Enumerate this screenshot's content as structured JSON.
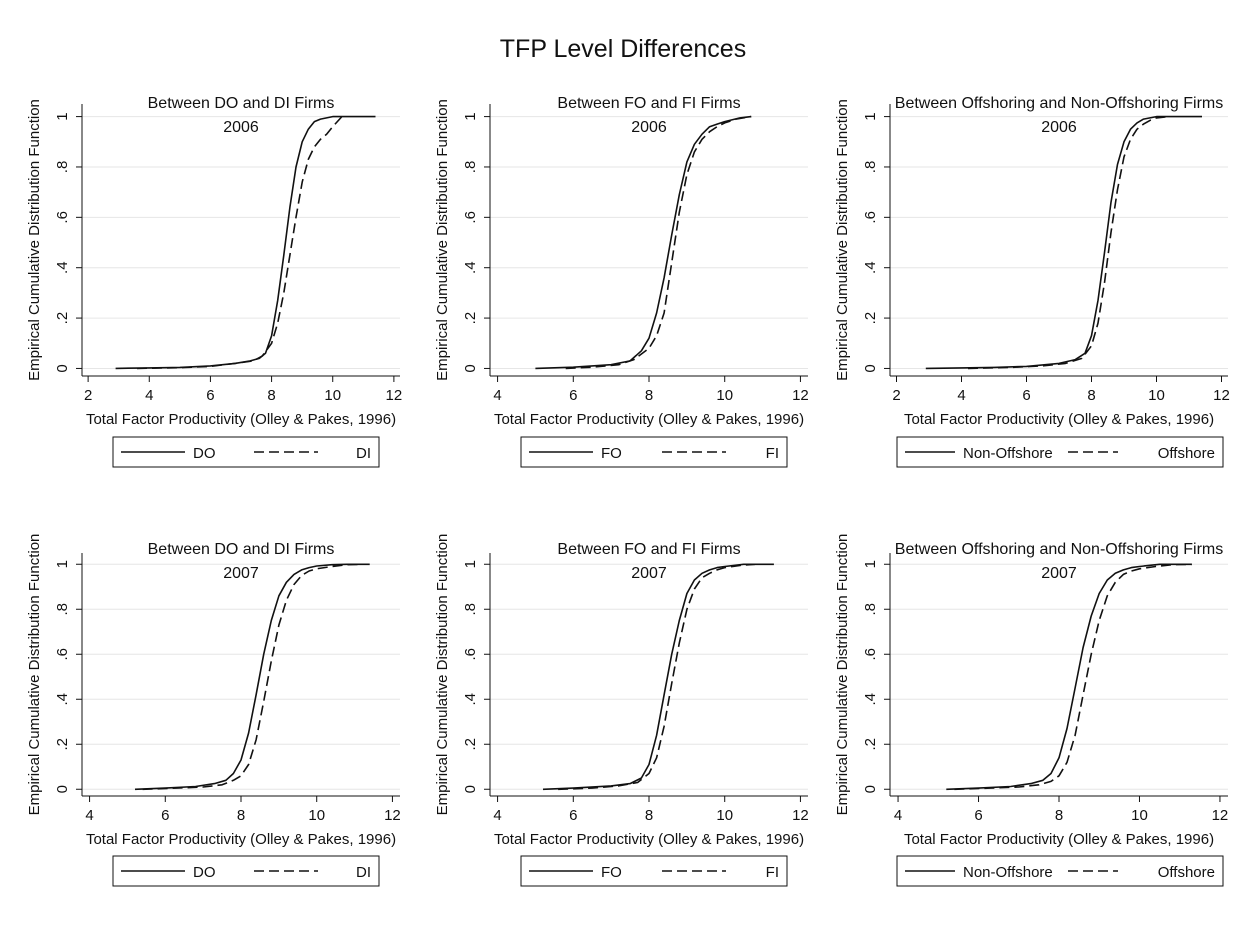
{
  "figure": {
    "title": "TFP Level Differences"
  },
  "chart_data": [
    {
      "type": "line",
      "title": "Between DO and DI Firms",
      "subtitle": "2006",
      "xlabel": "Total Factor Productivity (Olley & Pakes, 1996)",
      "ylabel": "Empirical Cumulative Distribution Function",
      "xlim": [
        1.8,
        12.2
      ],
      "ylim": [
        -0.03,
        1.05
      ],
      "xticks": [
        "2",
        "4",
        "6",
        "8",
        "10",
        "12"
      ],
      "yticks": [
        "0",
        ".2",
        ".4",
        ".6",
        ".8",
        "1"
      ],
      "grid": "horizontal",
      "legend": "bottom-outside",
      "series": [
        {
          "name": "DO",
          "style": "solid",
          "x": [
            2.9,
            4.0,
            5.0,
            6.0,
            6.8,
            7.3,
            7.6,
            7.8,
            8.0,
            8.2,
            8.4,
            8.6,
            8.8,
            9.0,
            9.2,
            9.4,
            9.6,
            9.8,
            10.0,
            10.5,
            11.4
          ],
          "y": [
            0,
            0.002,
            0.004,
            0.01,
            0.02,
            0.03,
            0.04,
            0.06,
            0.13,
            0.27,
            0.45,
            0.64,
            0.8,
            0.9,
            0.95,
            0.98,
            0.99,
            0.995,
            1,
            1,
            1
          ]
        },
        {
          "name": "DI",
          "style": "dashed",
          "x": [
            3.6,
            5.0,
            6.0,
            6.8,
            7.4,
            7.7,
            8.0,
            8.2,
            8.4,
            8.6,
            8.8,
            9.0,
            9.2,
            9.4,
            9.6,
            9.8,
            10.0,
            10.3
          ],
          "y": [
            0,
            0.003,
            0.008,
            0.02,
            0.03,
            0.05,
            0.1,
            0.18,
            0.3,
            0.45,
            0.6,
            0.74,
            0.83,
            0.88,
            0.91,
            0.93,
            0.96,
            1
          ]
        }
      ]
    },
    {
      "type": "line",
      "title": "Between FO and FI Firms",
      "subtitle": "2006",
      "xlabel": "Total Factor Productivity (Olley & Pakes, 1996)",
      "ylabel": "Empirical Cumulative Distribution Function",
      "xlim": [
        3.8,
        12.2
      ],
      "ylim": [
        -0.03,
        1.05
      ],
      "xticks": [
        "4",
        "6",
        "8",
        "10",
        "12"
      ],
      "yticks": [
        "0",
        ".2",
        ".4",
        ".6",
        ".8",
        "1"
      ],
      "grid": "horizontal",
      "legend": "bottom-outside",
      "series": [
        {
          "name": "FO",
          "style": "solid",
          "x": [
            5.0,
            6.0,
            7.0,
            7.5,
            7.8,
            8.0,
            8.2,
            8.4,
            8.6,
            8.8,
            9.0,
            9.2,
            9.4,
            9.6,
            9.8,
            10.0,
            10.4,
            10.7
          ],
          "y": [
            0,
            0.005,
            0.015,
            0.03,
            0.07,
            0.12,
            0.22,
            0.36,
            0.53,
            0.69,
            0.82,
            0.89,
            0.93,
            0.96,
            0.97,
            0.98,
            0.995,
            1
          ]
        },
        {
          "name": "FI",
          "style": "dashed",
          "x": [
            5.8,
            6.5,
            7.2,
            7.6,
            8.0,
            8.2,
            8.4,
            8.6,
            8.8,
            9.0,
            9.2,
            9.4,
            9.6,
            9.8,
            10.0,
            10.3,
            10.7
          ],
          "y": [
            0,
            0.005,
            0.015,
            0.035,
            0.08,
            0.13,
            0.22,
            0.42,
            0.62,
            0.77,
            0.86,
            0.91,
            0.94,
            0.96,
            0.975,
            0.99,
            1
          ]
        }
      ]
    },
    {
      "type": "line",
      "title": "Between Offshoring and Non-Offshoring Firms",
      "subtitle": "2006",
      "xlabel": "Total Factor Productivity (Olley & Pakes, 1996)",
      "ylabel": "Empirical Cumulative Distribution Function",
      "xlim": [
        1.8,
        12.2
      ],
      "ylim": [
        -0.03,
        1.05
      ],
      "xticks": [
        "2",
        "4",
        "6",
        "8",
        "10",
        "12"
      ],
      "yticks": [
        "0",
        ".2",
        ".4",
        ".6",
        ".8",
        "1"
      ],
      "grid": "horizontal",
      "legend": "bottom-outside",
      "series": [
        {
          "name": "Non-Offshore",
          "style": "solid",
          "x": [
            2.9,
            4.0,
            5.0,
            6.0,
            7.0,
            7.5,
            7.8,
            8.0,
            8.2,
            8.4,
            8.6,
            8.8,
            9.0,
            9.2,
            9.4,
            9.6,
            9.8,
            10.0,
            10.5,
            11.4
          ],
          "y": [
            0,
            0.002,
            0.004,
            0.008,
            0.02,
            0.035,
            0.06,
            0.13,
            0.27,
            0.46,
            0.66,
            0.81,
            0.9,
            0.95,
            0.975,
            0.99,
            0.995,
            1,
            1,
            1
          ]
        },
        {
          "name": "Offshore",
          "style": "dashed",
          "x": [
            4.2,
            5.5,
            6.5,
            7.2,
            7.7,
            8.0,
            8.2,
            8.4,
            8.6,
            8.8,
            9.0,
            9.2,
            9.4,
            9.6,
            9.8,
            10.0,
            10.4
          ],
          "y": [
            0,
            0.004,
            0.01,
            0.02,
            0.04,
            0.09,
            0.18,
            0.34,
            0.54,
            0.71,
            0.84,
            0.91,
            0.95,
            0.97,
            0.985,
            0.995,
            1
          ]
        }
      ]
    },
    {
      "type": "line",
      "title": "Between DO and DI Firms",
      "subtitle": "2007",
      "xlabel": "Total Factor Productivity (Olley & Pakes, 1996)",
      "ylabel": "Empirical Cumulative Distribution Function",
      "xlim": [
        3.8,
        12.2
      ],
      "ylim": [
        -0.03,
        1.05
      ],
      "xticks": [
        "4",
        "6",
        "8",
        "10",
        "12"
      ],
      "yticks": [
        "0",
        ".2",
        ".4",
        ".6",
        ".8",
        "1"
      ],
      "grid": "horizontal",
      "legend": "bottom-outside",
      "series": [
        {
          "name": "DO",
          "style": "solid",
          "x": [
            5.2,
            6.0,
            6.8,
            7.3,
            7.6,
            7.8,
            8.0,
            8.2,
            8.4,
            8.6,
            8.8,
            9.0,
            9.2,
            9.4,
            9.6,
            9.8,
            10.0,
            10.4,
            10.8,
            11.4
          ],
          "y": [
            0,
            0.005,
            0.012,
            0.025,
            0.04,
            0.07,
            0.13,
            0.25,
            0.42,
            0.6,
            0.75,
            0.86,
            0.92,
            0.955,
            0.975,
            0.985,
            0.992,
            0.998,
            1,
            1
          ]
        },
        {
          "name": "DI",
          "style": "dashed",
          "x": [
            5.4,
            6.3,
            7.0,
            7.5,
            7.8,
            8.0,
            8.2,
            8.4,
            8.6,
            8.8,
            9.0,
            9.2,
            9.4,
            9.6,
            9.8,
            10.0,
            10.4,
            10.8,
            11.2
          ],
          "y": [
            0,
            0.005,
            0.01,
            0.02,
            0.04,
            0.06,
            0.11,
            0.22,
            0.39,
            0.57,
            0.73,
            0.84,
            0.91,
            0.95,
            0.97,
            0.98,
            0.99,
            0.998,
            1
          ]
        }
      ]
    },
    {
      "type": "line",
      "title": "Between FO and FI Firms",
      "subtitle": "2007",
      "xlabel": "Total Factor Productivity (Olley & Pakes, 1996)",
      "ylabel": "Empirical Cumulative Distribution Function",
      "xlim": [
        3.8,
        12.2
      ],
      "ylim": [
        -0.03,
        1.05
      ],
      "xticks": [
        "4",
        "6",
        "8",
        "10",
        "12"
      ],
      "yticks": [
        "0",
        ".2",
        ".4",
        ".6",
        ".8",
        "1"
      ],
      "grid": "horizontal",
      "legend": "bottom-outside",
      "series": [
        {
          "name": "FO",
          "style": "solid",
          "x": [
            5.2,
            6.0,
            7.0,
            7.5,
            7.8,
            8.0,
            8.2,
            8.4,
            8.6,
            8.8,
            9.0,
            9.2,
            9.4,
            9.6,
            9.8,
            10.0,
            10.5,
            11.3
          ],
          "y": [
            0,
            0.005,
            0.015,
            0.025,
            0.05,
            0.11,
            0.24,
            0.42,
            0.6,
            0.75,
            0.87,
            0.93,
            0.96,
            0.975,
            0.985,
            0.99,
            1,
            1
          ]
        },
        {
          "name": "FI",
          "style": "dashed",
          "x": [
            5.6,
            6.5,
            7.2,
            7.7,
            8.0,
            8.2,
            8.4,
            8.6,
            8.8,
            9.0,
            9.2,
            9.4,
            9.6,
            9.8,
            10.0,
            10.4,
            10.8
          ],
          "y": [
            0,
            0.005,
            0.015,
            0.03,
            0.07,
            0.14,
            0.28,
            0.47,
            0.65,
            0.8,
            0.89,
            0.94,
            0.96,
            0.975,
            0.985,
            0.995,
            1
          ]
        }
      ]
    },
    {
      "type": "line",
      "title": "Between Offshoring and Non-Offshoring Firms",
      "subtitle": "2007",
      "xlabel": "Total Factor Productivity (Olley & Pakes, 1996)",
      "ylabel": "Empirical Cumulative Distribution Function",
      "xlim": [
        3.8,
        12.2
      ],
      "ylim": [
        -0.03,
        1.05
      ],
      "xticks": [
        "4",
        "6",
        "8",
        "10",
        "12"
      ],
      "yticks": [
        "0",
        ".2",
        ".4",
        ".6",
        ".8",
        "1"
      ],
      "grid": "horizontal",
      "legend": "bottom-outside",
      "series": [
        {
          "name": "Non-Offshore",
          "style": "solid",
          "x": [
            5.2,
            6.0,
            6.8,
            7.3,
            7.6,
            7.8,
            8.0,
            8.2,
            8.4,
            8.6,
            8.8,
            9.0,
            9.2,
            9.4,
            9.6,
            9.8,
            10.0,
            10.5,
            11.3
          ],
          "y": [
            0,
            0.005,
            0.012,
            0.025,
            0.04,
            0.07,
            0.14,
            0.27,
            0.45,
            0.63,
            0.77,
            0.87,
            0.93,
            0.96,
            0.975,
            0.985,
            0.99,
            1,
            1
          ]
        },
        {
          "name": "Offshore",
          "style": "dashed",
          "x": [
            5.4,
            6.3,
            7.0,
            7.5,
            7.8,
            8.0,
            8.2,
            8.4,
            8.6,
            8.8,
            9.0,
            9.2,
            9.4,
            9.6,
            9.8,
            10.0,
            10.4,
            10.8,
            11.3
          ],
          "y": [
            0,
            0.005,
            0.01,
            0.02,
            0.035,
            0.06,
            0.12,
            0.24,
            0.42,
            0.6,
            0.75,
            0.86,
            0.92,
            0.955,
            0.97,
            0.98,
            0.99,
            0.998,
            1
          ]
        }
      ]
    }
  ]
}
